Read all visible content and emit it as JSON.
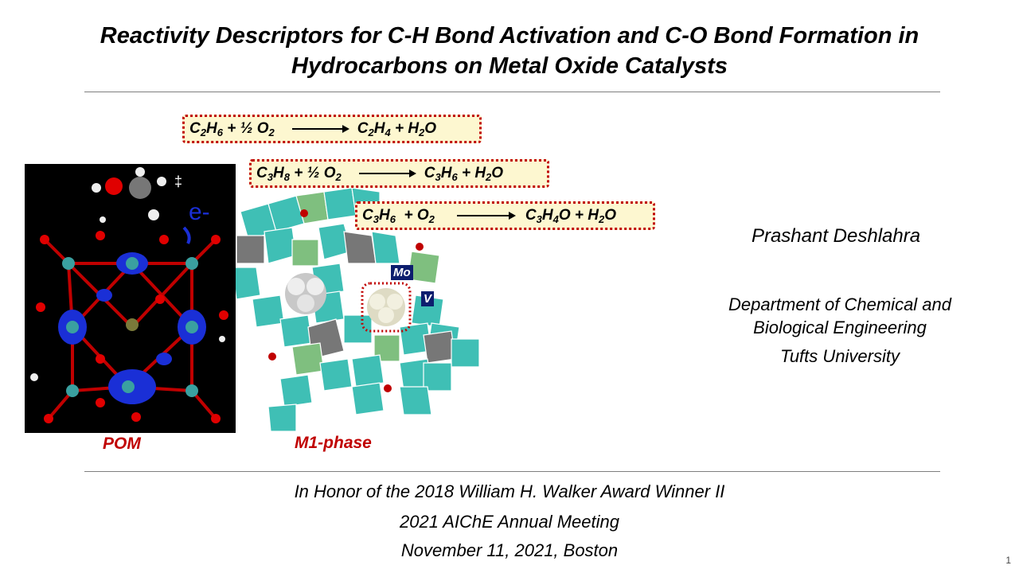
{
  "slide": {
    "title_line1": "Reactivity Descriptors for C-H Bond Activation and C-O Bond Formation in",
    "title_line2": "Hydrocarbons on Metal Oxide Catalysts",
    "equations": [
      {
        "reactants": [
          "C",
          "2",
          "H",
          "6",
          " + ½ O",
          "2"
        ],
        "products": [
          "C",
          "2",
          "H",
          "4",
          " + H",
          "2",
          "O"
        ]
      },
      {
        "reactants": [
          "C",
          "3",
          "H",
          "8",
          " + ½ O",
          "2"
        ],
        "products": [
          "C",
          "3",
          "H",
          "6",
          " + H",
          "2",
          "O"
        ]
      },
      {
        "reactants": [
          "C",
          "3",
          "H",
          "6",
          "  + O",
          "2"
        ],
        "products": [
          "C",
          "3",
          "H",
          "4",
          "O + H",
          "2",
          "O"
        ]
      }
    ],
    "pom_label": "POM",
    "m1_label": "M1-phase",
    "mo_label": "Mo",
    "v_label": "V",
    "electron_label": "e-",
    "ts_symbol": "‡",
    "author": "Prashant Deshlahra",
    "dept_line1": "Department of Chemical and",
    "dept_line2": "Biological Engineering",
    "university": "Tufts University",
    "footer_line1": "In Honor of the 2018 William H. Walker Award Winner II",
    "footer_line2": "2021 AIChE Annual Meeting",
    "footer_line3": "November 11, 2021, Boston",
    "page_number": "1"
  },
  "colors": {
    "accent_red": "#c00000",
    "box_fill": "#fdf7d0",
    "teal": "#3fbfb5",
    "green": "#7fbf7f",
    "gray": "#777777",
    "badge": "#0d1e6e"
  }
}
